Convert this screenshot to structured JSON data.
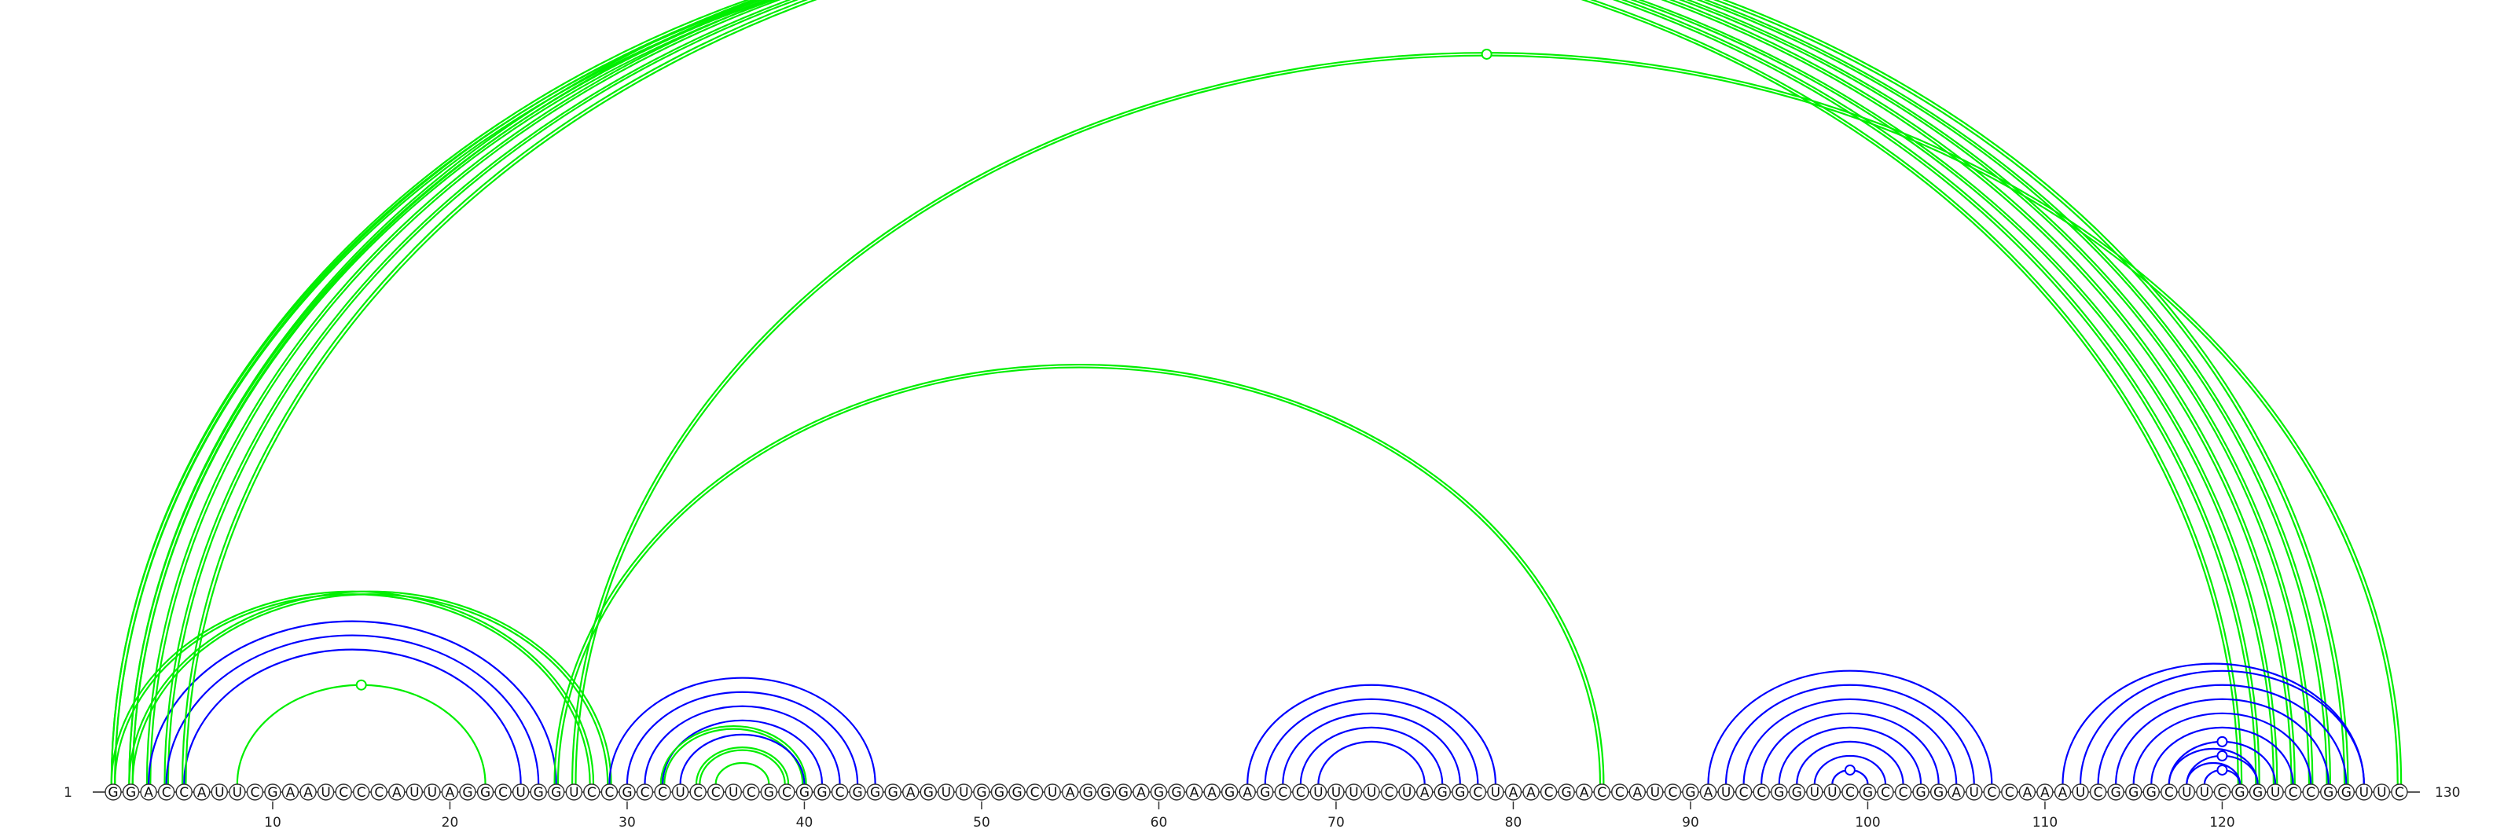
{
  "sequence": "GGACCAUUCGAAUCCCAUUAGGCUGGUCCGCCUCCUCGCGGCGGGAGUUGGGCUAGGGAGGAAGAGCCUUUUCUAGGCUAACGACCAUCGAUCCGGUUCGCCGGAUCCAAAUCGGGCUUCGGUCCGGUUC",
  "start_label": "1",
  "end_label": "130",
  "ticks": [
    "10",
    "20",
    "30",
    "40",
    "50",
    "60",
    "70",
    "80",
    "90",
    "100",
    "110",
    "120"
  ],
  "colors": {
    "canonical": "#0000ff",
    "noncanonical": "#00ee00",
    "backbone": "#222222",
    "nucleotide_fill": "#ffffff"
  },
  "arcs": [
    {
      "i": 1,
      "j": 121,
      "type": "noncanonical",
      "lines": 2
    },
    {
      "i": 1,
      "j": 122,
      "type": "noncanonical",
      "lines": 2
    },
    {
      "i": 1,
      "j": 28,
      "type": "noncanonical",
      "lines": 2
    },
    {
      "i": 2,
      "j": 123,
      "type": "noncanonical",
      "lines": 2
    },
    {
      "i": 2,
      "j": 124,
      "type": "noncanonical",
      "lines": 2
    },
    {
      "i": 2,
      "j": 29,
      "type": "noncanonical",
      "lines": 2
    },
    {
      "i": 3,
      "j": 125,
      "type": "noncanonical",
      "lines": 2
    },
    {
      "i": 3,
      "j": 26,
      "type": "canonical",
      "lines": 1
    },
    {
      "i": 4,
      "j": 126,
      "type": "noncanonical",
      "lines": 2
    },
    {
      "i": 4,
      "j": 25,
      "type": "canonical",
      "lines": 1
    },
    {
      "i": 5,
      "j": 24,
      "type": "canonical",
      "lines": 1
    },
    {
      "i": 5,
      "j": 127,
      "type": "noncanonical",
      "lines": 2
    },
    {
      "i": 8,
      "j": 22,
      "type": "noncanonical",
      "lines": 1,
      "marker": true
    },
    {
      "i": 26,
      "j": 85,
      "type": "noncanonical",
      "lines": 2
    },
    {
      "i": 27,
      "j": 130,
      "type": "noncanonical",
      "lines": 2,
      "marker": true
    },
    {
      "i": 29,
      "j": 44,
      "type": "canonical",
      "lines": 1
    },
    {
      "i": 30,
      "j": 43,
      "type": "canonical",
      "lines": 1
    },
    {
      "i": 31,
      "j": 42,
      "type": "canonical",
      "lines": 1
    },
    {
      "i": 32,
      "j": 41,
      "type": "canonical",
      "lines": 1
    },
    {
      "i": 32,
      "j": 40,
      "type": "noncanonical",
      "lines": 2
    },
    {
      "i": 33,
      "j": 40,
      "type": "canonical",
      "lines": 1
    },
    {
      "i": 34,
      "j": 39,
      "type": "noncanonical",
      "lines": 2
    },
    {
      "i": 35,
      "j": 38,
      "type": "noncanonical",
      "lines": 1
    },
    {
      "i": 65,
      "j": 79,
      "type": "canonical",
      "lines": 1
    },
    {
      "i": 66,
      "j": 78,
      "type": "canonical",
      "lines": 1
    },
    {
      "i": 67,
      "j": 77,
      "type": "canonical",
      "lines": 1
    },
    {
      "i": 68,
      "j": 76,
      "type": "canonical",
      "lines": 1
    },
    {
      "i": 69,
      "j": 75,
      "type": "canonical",
      "lines": 1
    },
    {
      "i": 91,
      "j": 107,
      "type": "canonical",
      "lines": 1
    },
    {
      "i": 92,
      "j": 106,
      "type": "canonical",
      "lines": 1
    },
    {
      "i": 93,
      "j": 105,
      "type": "canonical",
      "lines": 1
    },
    {
      "i": 94,
      "j": 104,
      "type": "canonical",
      "lines": 1
    },
    {
      "i": 95,
      "j": 103,
      "type": "canonical",
      "lines": 1
    },
    {
      "i": 96,
      "j": 102,
      "type": "canonical",
      "lines": 1
    },
    {
      "i": 97,
      "j": 101,
      "type": "canonical",
      "lines": 1
    },
    {
      "i": 98,
      "j": 100,
      "type": "canonical",
      "lines": 1,
      "marker": true
    },
    {
      "i": 111,
      "j": 128,
      "type": "canonical",
      "lines": 1
    },
    {
      "i": 112,
      "j": 128,
      "type": "canonical",
      "lines": 1
    },
    {
      "i": 113,
      "j": 127,
      "type": "canonical",
      "lines": 1
    },
    {
      "i": 114,
      "j": 126,
      "type": "canonical",
      "lines": 1
    },
    {
      "i": 115,
      "j": 125,
      "type": "canonical",
      "lines": 1
    },
    {
      "i": 116,
      "j": 124,
      "type": "canonical",
      "lines": 1
    },
    {
      "i": 117,
      "j": 122,
      "type": "canonical",
      "lines": 1
    },
    {
      "i": 118,
      "j": 121,
      "type": "canonical",
      "lines": 1
    },
    {
      "i": 117,
      "j": 123,
      "type": "canonical",
      "lines": 1,
      "marker": true
    },
    {
      "i": 118,
      "j": 122,
      "type": "canonical",
      "lines": 1,
      "marker": true
    },
    {
      "i": 119,
      "j": 121,
      "type": "canonical",
      "lines": 1,
      "marker": true
    }
  ]
}
